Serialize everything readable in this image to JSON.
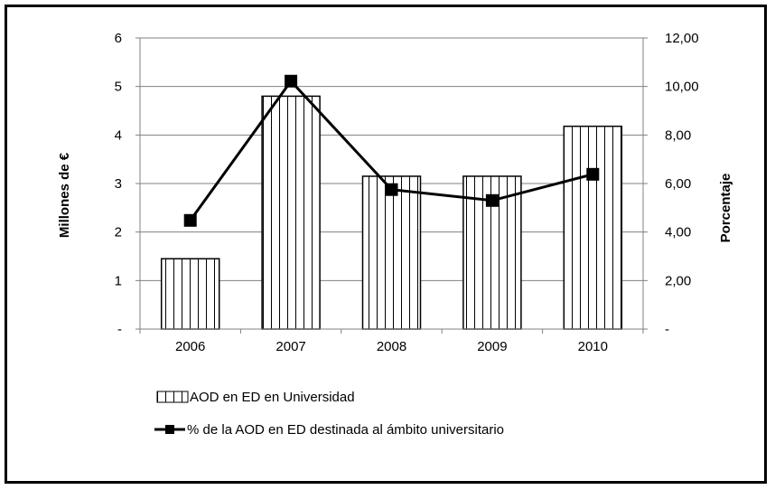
{
  "chart_data": {
    "type": "bar+line",
    "categories": [
      "2006",
      "2007",
      "2008",
      "2009",
      "2010"
    ],
    "series": [
      {
        "name": "AOD en ED en Universidad",
        "type": "bar",
        "axis": "left",
        "values": [
          1.45,
          4.8,
          3.15,
          3.15,
          4.18
        ]
      },
      {
        "name": "% de la AOD en ED destinada al ámbito universitario",
        "type": "line",
        "axis": "right",
        "values": [
          4.48,
          10.22,
          5.75,
          5.3,
          6.38
        ]
      }
    ],
    "y_left": {
      "label": "Millones de €",
      "range": [
        0,
        6
      ],
      "ticks": [
        "-",
        "1",
        "2",
        "3",
        "4",
        "5",
        "6"
      ]
    },
    "y_right": {
      "label": "Porcentaje",
      "range": [
        0,
        12
      ],
      "ticks": [
        "-",
        "2,00",
        "4,00",
        "6,00",
        "8,00",
        "10,00",
        "12,00"
      ]
    },
    "grid": true,
    "legend_position": "bottom-left",
    "bar_pattern": "vertical-stripes",
    "colors": {
      "line": "#000000",
      "bar_fill": "#ffffff",
      "grid": "#808080"
    }
  }
}
